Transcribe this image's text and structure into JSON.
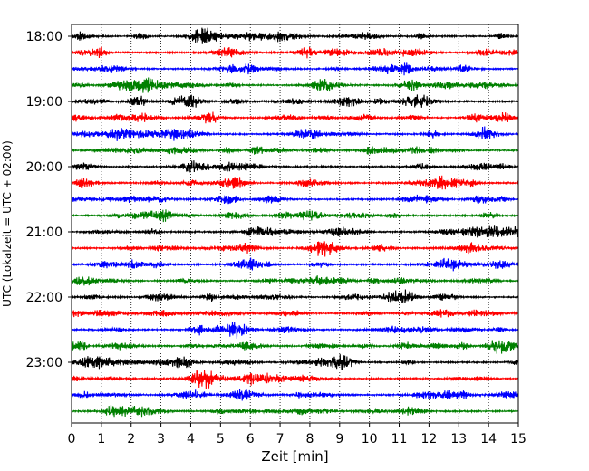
{
  "chart_data": {
    "type": "line",
    "title": "",
    "xlabel": "Zeit  [min]",
    "ylabel": "UTC (Lokalzeit = UTC + 02:00)",
    "xlim": [
      0,
      15
    ],
    "x_ticks": [
      "0",
      "1",
      "2",
      "3",
      "4",
      "5",
      "6",
      "7",
      "8",
      "9",
      "10",
      "11",
      "12",
      "13",
      "14",
      "15"
    ],
    "y_tick_labels": [
      "18:00",
      "19:00",
      "20:00",
      "21:00",
      "22:00",
      "23:00"
    ],
    "trace_interval_minutes": 15,
    "start_time": "18:00",
    "traces_count": 24,
    "trace_colors": [
      "#000000",
      "#ff0000",
      "#0000ff",
      "#008000"
    ],
    "grid_x": true,
    "grid_style": "dotted"
  }
}
